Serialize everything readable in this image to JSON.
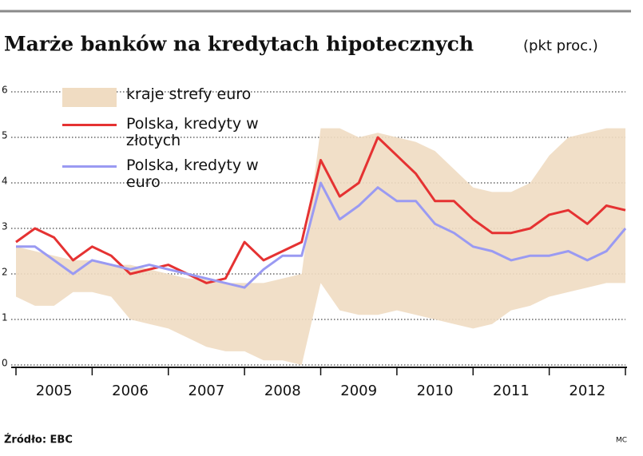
{
  "chart_data": {
    "type": "line",
    "title": "Marże banków na kredytach hipotecznych",
    "subtitle": "(pkt proc.)",
    "source": "Źródło: EBC",
    "credit": "MC",
    "x": [
      2005,
      2005.25,
      2005.5,
      2005.75,
      2006,
      2006.25,
      2006.5,
      2006.75,
      2007,
      2007.25,
      2007.5,
      2007.75,
      2008,
      2008.25,
      2008.5,
      2008.75,
      2009,
      2009.25,
      2009.5,
      2009.75,
      2010,
      2010.25,
      2010.5,
      2010.75,
      2011,
      2011.25,
      2011.5,
      2011.75,
      2012,
      2012.25,
      2012.5,
      2012.75,
      2013
    ],
    "xlim": [
      2005,
      2013
    ],
    "xticks": [
      {
        "value": 2005.5,
        "label": "2005"
      },
      {
        "value": 2006.5,
        "label": "2006"
      },
      {
        "value": 2007.5,
        "label": "2007"
      },
      {
        "value": 2008.5,
        "label": "2008"
      },
      {
        "value": 2009.5,
        "label": "2009"
      },
      {
        "value": 2010.5,
        "label": "2010"
      },
      {
        "value": 2011.5,
        "label": "2011"
      },
      {
        "value": 2012.5,
        "label": "2012"
      }
    ],
    "ylim": [
      0,
      6
    ],
    "yticks": [
      0,
      1,
      2,
      3,
      4,
      5,
      6
    ],
    "grid": true,
    "series": [
      {
        "name": "kraje strefy euro",
        "color": "#f0dcc2",
        "low": [
          1.5,
          1.3,
          1.3,
          1.6,
          1.6,
          1.5,
          1.0,
          0.9,
          0.8,
          0.6,
          0.4,
          0.3,
          0.3,
          0.1,
          0.1,
          0.0,
          1.8,
          1.2,
          1.1,
          1.1,
          1.2,
          1.1,
          1.0,
          0.9,
          0.8,
          0.9,
          1.2,
          1.3,
          1.5,
          1.6,
          1.7,
          1.8,
          1.8
        ],
        "high": [
          2.6,
          2.5,
          2.4,
          2.3,
          2.3,
          2.2,
          2.2,
          2.1,
          2.0,
          1.9,
          1.9,
          1.8,
          1.8,
          1.8,
          1.9,
          2.0,
          5.2,
          5.2,
          5.0,
          5.1,
          5.0,
          4.9,
          4.7,
          4.3,
          3.9,
          3.8,
          3.8,
          4.0,
          4.6,
          5.0,
          5.1,
          5.2,
          5.2
        ]
      },
      {
        "name": "Polska, kredyty w złotych",
        "color": "#e53232",
        "values": [
          2.7,
          3.0,
          2.8,
          2.3,
          2.6,
          2.4,
          2.0,
          2.1,
          2.2,
          2.0,
          1.8,
          1.9,
          2.7,
          2.3,
          2.5,
          2.7,
          4.5,
          3.7,
          4.0,
          5.0,
          4.6,
          4.2,
          3.6,
          3.6,
          3.2,
          2.9,
          2.9,
          3.0,
          3.3,
          3.4,
          3.1,
          3.5,
          3.4
        ]
      },
      {
        "name": "Polska, kredyty w euro",
        "color": "#9a9af2",
        "values": [
          2.6,
          2.6,
          2.3,
          2.0,
          2.3,
          2.2,
          2.1,
          2.2,
          2.1,
          2.0,
          1.9,
          1.8,
          1.7,
          2.1,
          2.4,
          2.4,
          4.0,
          3.2,
          3.5,
          3.9,
          3.6,
          3.6,
          3.1,
          2.9,
          2.6,
          2.5,
          2.3,
          2.4,
          2.4,
          2.5,
          2.3,
          2.5,
          3.0
        ]
      }
    ]
  }
}
